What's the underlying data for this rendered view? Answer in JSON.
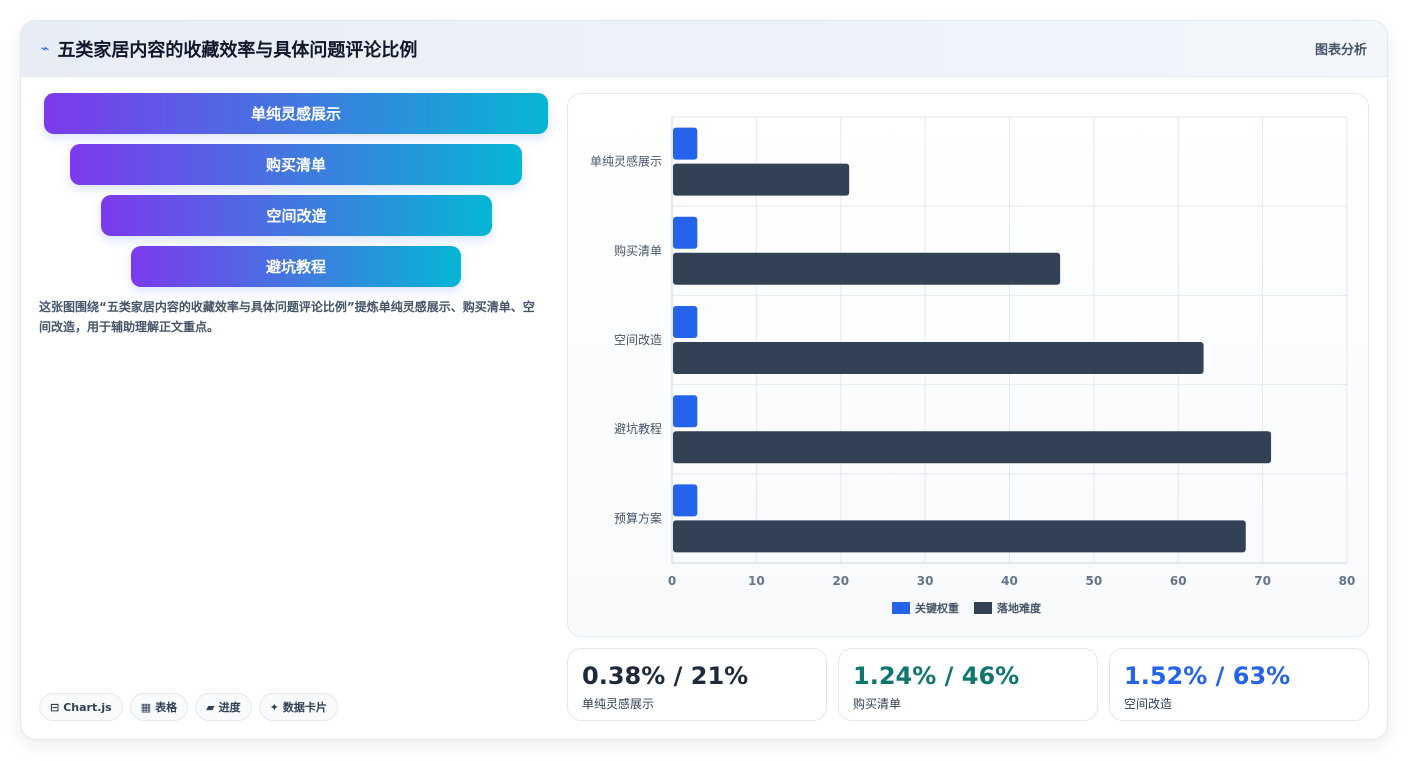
{
  "header": {
    "title": "五类家居内容的收藏效率与具体问题评论比例",
    "right_label": "图表分析"
  },
  "funnel": [
    "单纯灵感展示",
    "购买清单",
    "空间改造",
    "避坑教程"
  ],
  "description": "这张图围绕“五类家居内容的收藏效率与具体问题评论比例”提炼单纯灵感展示、购买清单、空间改造，用于辅助理解正文重点。",
  "tags": [
    {
      "icon": "⊟",
      "icon_name": "chart-icon",
      "label": "Chart.js"
    },
    {
      "icon": "▦",
      "icon_name": "table-icon",
      "label": "表格"
    },
    {
      "icon": "▰",
      "icon_name": "progress-icon",
      "label": "进度"
    },
    {
      "icon": "✦",
      "icon_name": "sparkle-icon",
      "label": "数据卡片"
    }
  ],
  "stats": [
    {
      "value": "0.38% / 21%",
      "label": "单纯灵感展示",
      "color": "#1e293b"
    },
    {
      "value": "1.24% / 46%",
      "label": "购买清单",
      "color": "#0f766e"
    },
    {
      "value": "1.52% / 63%",
      "label": "空间改造",
      "color": "#2563eb"
    }
  ],
  "chart_data": {
    "type": "bar",
    "orientation": "horizontal",
    "categories": [
      "单纯灵感展示",
      "购买清单",
      "空间改造",
      "避坑教程",
      "预算方案"
    ],
    "series": [
      {
        "name": "关键权重",
        "values": [
          3,
          3,
          3,
          3,
          3
        ],
        "color": "#2563eb"
      },
      {
        "name": "落地难度",
        "values": [
          21,
          46,
          63,
          71,
          68
        ],
        "color": "#334155"
      }
    ],
    "xlim": [
      0,
      80
    ],
    "xticks": [
      0,
      10,
      20,
      30,
      40,
      50,
      60,
      70,
      80
    ],
    "grid": true,
    "legend_position": "bottom"
  }
}
